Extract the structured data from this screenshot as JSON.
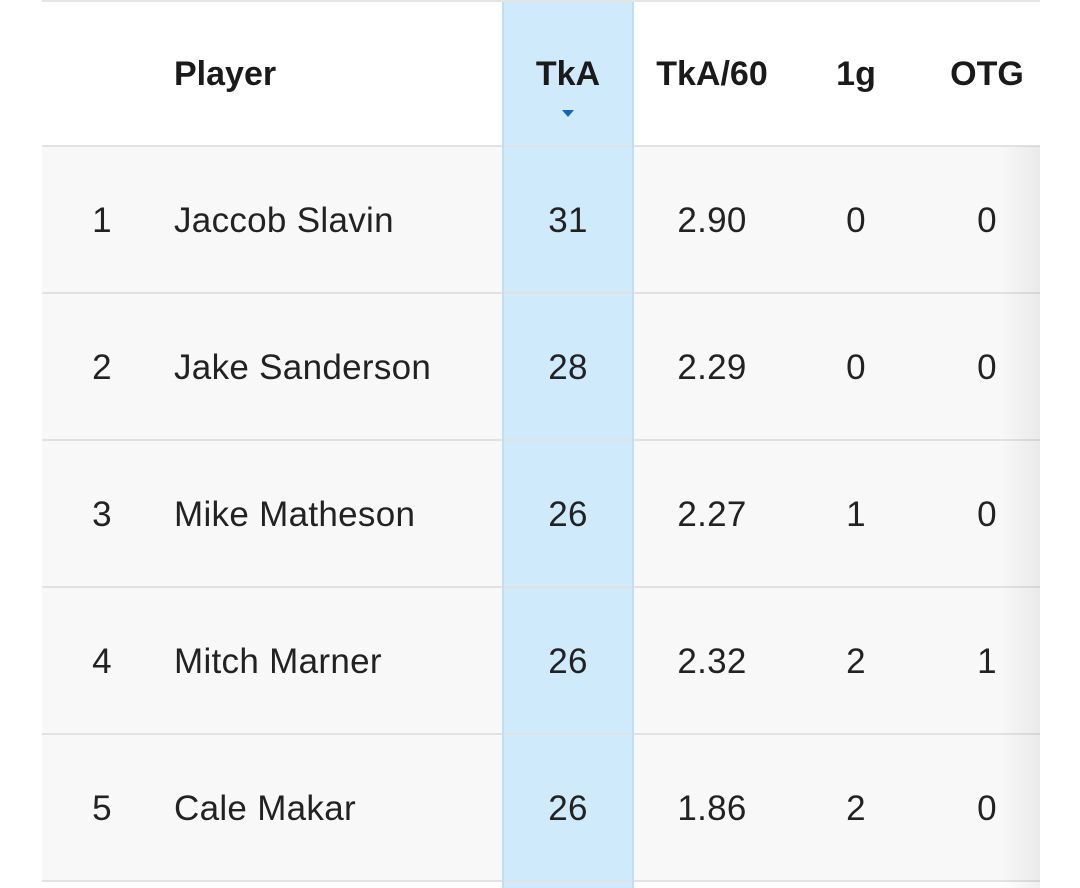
{
  "table": {
    "headers": {
      "rank": "",
      "player": "Player",
      "tka": "TkA",
      "tka60": "TkA/60",
      "one_g": "1g",
      "otg": "OTG"
    },
    "sorted_column": "TkA",
    "sort_direction": "descending",
    "accent_color": "#cfeafa",
    "sort_indicator_color": "#1565c0",
    "rows": [
      {
        "rank": "1",
        "player": "Jaccob Slavin",
        "tka": "31",
        "tka60": "2.90",
        "one_g": "0",
        "otg": "0"
      },
      {
        "rank": "2",
        "player": "Jake Sanderson",
        "tka": "28",
        "tka60": "2.29",
        "one_g": "0",
        "otg": "0"
      },
      {
        "rank": "3",
        "player": "Mike Matheson",
        "tka": "26",
        "tka60": "2.27",
        "one_g": "1",
        "otg": "0"
      },
      {
        "rank": "4",
        "player": "Mitch Marner",
        "tka": "26",
        "tka60": "2.32",
        "one_g": "2",
        "otg": "1"
      },
      {
        "rank": "5",
        "player": "Cale Makar",
        "tka": "26",
        "tka60": "1.86",
        "one_g": "2",
        "otg": "0"
      }
    ]
  }
}
